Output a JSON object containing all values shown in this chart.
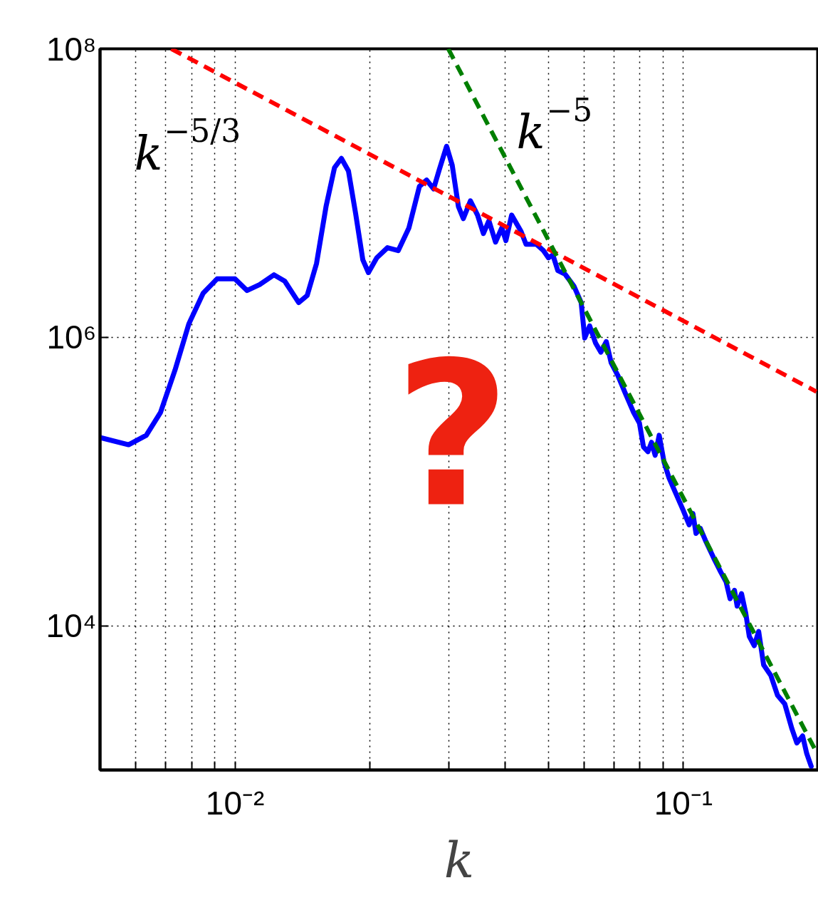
{
  "chart_data": {
    "type": "line",
    "xlabel": "k",
    "log": "xy",
    "grid": true,
    "line_style": "solid",
    "marker": "none",
    "xlim": [
      0.005,
      0.2
    ],
    "ylim": [
      1000,
      100000000
    ],
    "xticks": [
      {
        "value": 0.006,
        "label": null
      },
      {
        "value": 0.007,
        "label": null
      },
      {
        "value": 0.008,
        "label": null
      },
      {
        "value": 0.009,
        "label": null
      },
      {
        "value": 0.01,
        "label": "10⁻²"
      },
      {
        "value": 0.02,
        "label": null
      },
      {
        "value": 0.03,
        "label": null
      },
      {
        "value": 0.04,
        "label": null
      },
      {
        "value": 0.05,
        "label": null
      },
      {
        "value": 0.06,
        "label": null
      },
      {
        "value": 0.07,
        "label": null
      },
      {
        "value": 0.08,
        "label": null
      },
      {
        "value": 0.09,
        "label": null
      },
      {
        "value": 0.1,
        "label": "10⁻¹"
      }
    ],
    "yticks": [
      {
        "value": 10000,
        "label": "10⁴"
      },
      {
        "value": 1000000,
        "label": "10⁶"
      },
      {
        "value": 100000000,
        "label": "10⁸"
      }
    ],
    "annotations": [
      "?"
    ],
    "series": [
      {
        "color": "#0000ff",
        "x": [
          0.005,
          0.00579,
          0.00634,
          0.00682,
          0.00735,
          0.00789,
          0.00849,
          0.00912,
          0.01,
          0.01064,
          0.01135,
          0.01222,
          0.01291,
          0.01387,
          0.01449,
          0.0152,
          0.01596,
          0.01667,
          0.01727,
          0.01791,
          0.01858,
          0.01928,
          0.01984,
          0.02071,
          0.02188,
          0.02312,
          0.02443,
          0.02578,
          0.02675,
          0.02773,
          0.02856,
          0.02964,
          0.03051,
          0.0315,
          0.0323,
          0.0335,
          0.03475,
          0.03581,
          0.03684,
          0.03811,
          0.03936,
          0.04019,
          0.0414,
          0.04345,
          0.04457,
          0.04699,
          0.04875,
          0.05,
          0.05117,
          0.05248,
          0.05445,
          0.05702,
          0.05916,
          0.06026,
          0.0618,
          0.06368,
          0.06546,
          0.0673,
          0.06902,
          0.07145,
          0.07413,
          0.07745,
          0.0798,
          0.08147,
          0.08337,
          0.08492,
          0.0865,
          0.08831,
          0.09057,
          0.0929,
          0.09638,
          0.1,
          0.103,
          0.105,
          0.1067,
          0.1091,
          0.112,
          0.1169,
          0.1213,
          0.1245,
          0.1271,
          0.13,
          0.1318,
          0.1348,
          0.1377,
          0.1403,
          0.1439,
          0.1472,
          0.151,
          0.1567,
          0.1622,
          0.1683,
          0.1746,
          0.1791,
          0.1845,
          0.1884,
          0.1928
        ],
        "values": [
          202000,
          180000,
          209000,
          301000,
          593000,
          1240000,
          2020000,
          2540000,
          2540000,
          2110000,
          2320000,
          2710000,
          2450000,
          1740000,
          1950000,
          3250000,
          8060000,
          15000000,
          17400000,
          14200000,
          7200000,
          3440000,
          2810000,
          3560000,
          4180000,
          3990000,
          5740000,
          11100000,
          12300000,
          10700000,
          14600000,
          21100000,
          15600000,
          8060000,
          6650000,
          8830000,
          7030000,
          5240000,
          6430000,
          4570000,
          5740000,
          4680000,
          7030000,
          5420000,
          4420000,
          4420000,
          3990000,
          3560000,
          3720000,
          2900000,
          2740000,
          2260000,
          1740000,
          989000,
          1200000,
          914000,
          789000,
          933000,
          665000,
          542000,
          413000,
          301000,
          254000,
          174000,
          161000,
          187000,
          152000,
          209000,
          136000,
          106000,
          81500,
          62800,
          50100,
          60000,
          43700,
          47300,
          39000,
          29400,
          23400,
          20200,
          15400,
          17600,
          13700,
          16700,
          12300,
          8430,
          7280,
          9140,
          5360,
          4520,
          3290,
          2870,
          1930,
          1540,
          1720,
          1300,
          1060
        ]
      },
      {
        "name": "k$^{−5/3}$",
        "color": "#ff0000",
        "line_style": "dashed",
        "x": [
          0.00721,
          0.198
        ],
        "values": [
          100000000,
          420000
        ]
      },
      {
        "name": "k$^{−5}$",
        "color": "#007f00",
        "line_style": "dashed",
        "x": [
          0.0299,
          0.198
        ],
        "values": [
          100000000,
          1330
        ]
      }
    ]
  }
}
